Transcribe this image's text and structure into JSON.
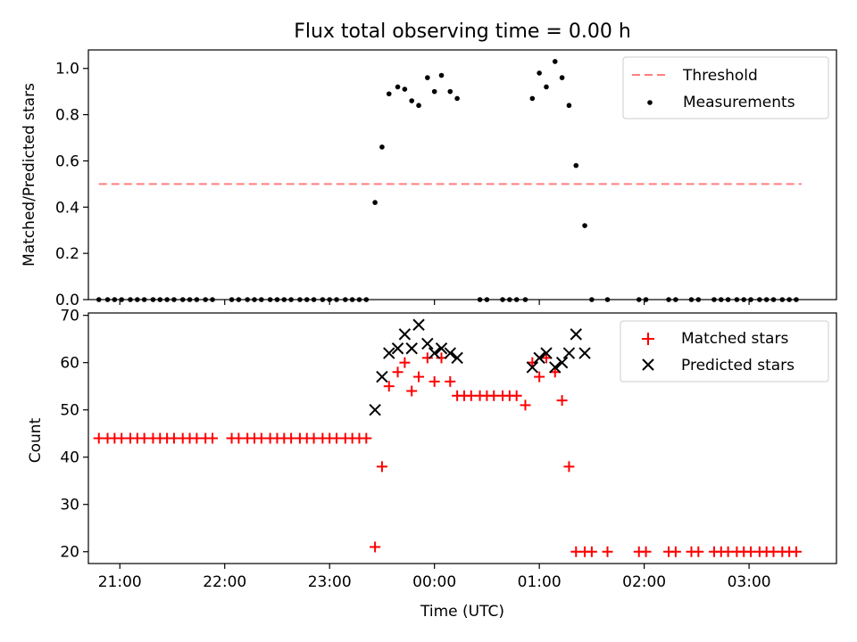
{
  "chart_data": [
    {
      "type": "scatter",
      "title": "Flux total observing time = 0.00 h",
      "xlabel": "",
      "ylabel": "Matched/Predicted stars",
      "xlim": [
        "20:42",
        "03:50"
      ],
      "ylim": [
        0,
        1.08
      ],
      "yticks": [
        "0.0",
        "0.2",
        "0.4",
        "0.6",
        "0.8",
        "1.0"
      ],
      "x_tick_positions": [
        "21:00",
        "22:00",
        "23:00",
        "00:00",
        "01:00",
        "02:00",
        "03:00"
      ],
      "legend": {
        "placement": "top-right",
        "entries": [
          "Threshold",
          "Measurements"
        ]
      },
      "threshold": {
        "name": "Threshold",
        "value": 0.5,
        "x_start": "20:48",
        "x_end": "03:30",
        "color": "#ff7f7f"
      },
      "series": [
        {
          "name": "Measurements",
          "color": "#000000",
          "points": [
            [
              "20:48",
              0
            ],
            [
              "20:53",
              0
            ],
            [
              "20:57",
              0
            ],
            [
              "21:01",
              0
            ],
            [
              "21:06",
              0
            ],
            [
              "21:10",
              0
            ],
            [
              "21:14",
              0
            ],
            [
              "21:19",
              0
            ],
            [
              "21:23",
              0
            ],
            [
              "21:27",
              0
            ],
            [
              "21:31",
              0
            ],
            [
              "21:36",
              0
            ],
            [
              "21:40",
              0
            ],
            [
              "21:44",
              0
            ],
            [
              "21:49",
              0
            ],
            [
              "21:53",
              0
            ],
            [
              "22:04",
              0
            ],
            [
              "22:08",
              0
            ],
            [
              "22:13",
              0
            ],
            [
              "22:17",
              0
            ],
            [
              "22:21",
              0
            ],
            [
              "22:26",
              0
            ],
            [
              "22:30",
              0
            ],
            [
              "22:34",
              0
            ],
            [
              "22:38",
              0
            ],
            [
              "22:43",
              0
            ],
            [
              "22:47",
              0
            ],
            [
              "22:51",
              0
            ],
            [
              "22:56",
              0
            ],
            [
              "23:00",
              0
            ],
            [
              "23:04",
              0
            ],
            [
              "23:09",
              0
            ],
            [
              "23:13",
              0
            ],
            [
              "23:17",
              0
            ],
            [
              "23:21",
              0
            ],
            [
              "23:26",
              0.42
            ],
            [
              "23:30",
              0.66
            ],
            [
              "23:34",
              0.89
            ],
            [
              "23:39",
              0.92
            ],
            [
              "23:43",
              0.91
            ],
            [
              "23:47",
              0.86
            ],
            [
              "23:51",
              0.84
            ],
            [
              "23:56",
              0.96
            ],
            [
              "00:00",
              0.9
            ],
            [
              "00:04",
              0.97
            ],
            [
              "00:09",
              0.9
            ],
            [
              "00:13",
              0.87
            ],
            [
              "00:26",
              0
            ],
            [
              "00:30",
              0
            ],
            [
              "00:39",
              0
            ],
            [
              "00:43",
              0
            ],
            [
              "00:47",
              0
            ],
            [
              "00:52",
              0
            ],
            [
              "00:56",
              0.87
            ],
            [
              "01:00",
              0.98
            ],
            [
              "01:04",
              0.92
            ],
            [
              "01:09",
              1.03
            ],
            [
              "01:13",
              0.96
            ],
            [
              "01:17",
              0.84
            ],
            [
              "01:21",
              0.58
            ],
            [
              "01:26",
              0.32
            ],
            [
              "01:30",
              0
            ],
            [
              "01:39",
              0
            ],
            [
              "01:57",
              0
            ],
            [
              "02:01",
              0
            ],
            [
              "02:14",
              0
            ],
            [
              "02:18",
              0
            ],
            [
              "02:27",
              0
            ],
            [
              "02:31",
              0
            ],
            [
              "02:40",
              0
            ],
            [
              "02:44",
              0
            ],
            [
              "02:48",
              0
            ],
            [
              "02:53",
              0
            ],
            [
              "02:57",
              0
            ],
            [
              "03:01",
              0
            ],
            [
              "03:06",
              0
            ],
            [
              "03:10",
              0
            ],
            [
              "03:14",
              0
            ],
            [
              "03:19",
              0
            ],
            [
              "03:23",
              0
            ],
            [
              "03:27",
              0
            ]
          ]
        }
      ]
    },
    {
      "type": "scatter",
      "xlabel": "Time (UTC)",
      "ylabel": "Count",
      "xlim": [
        "20:42",
        "03:50"
      ],
      "ylim": [
        17.5,
        70.5
      ],
      "yticks": [
        "20",
        "30",
        "40",
        "50",
        "60",
        "70"
      ],
      "xticks": [
        "21:00",
        "22:00",
        "23:00",
        "00:00",
        "01:00",
        "02:00",
        "03:00"
      ],
      "legend": {
        "placement": "top-right",
        "entries": [
          "Matched stars",
          "Predicted stars"
        ]
      },
      "series": [
        {
          "name": "Matched stars",
          "marker": "plus",
          "color": "#ff0000",
          "points": [
            [
              "20:48",
              44
            ],
            [
              "20:53",
              44
            ],
            [
              "20:57",
              44
            ],
            [
              "21:01",
              44
            ],
            [
              "21:06",
              44
            ],
            [
              "21:10",
              44
            ],
            [
              "21:14",
              44
            ],
            [
              "21:19",
              44
            ],
            [
              "21:23",
              44
            ],
            [
              "21:27",
              44
            ],
            [
              "21:31",
              44
            ],
            [
              "21:36",
              44
            ],
            [
              "21:40",
              44
            ],
            [
              "21:44",
              44
            ],
            [
              "21:49",
              44
            ],
            [
              "21:53",
              44
            ],
            [
              "22:04",
              44
            ],
            [
              "22:08",
              44
            ],
            [
              "22:13",
              44
            ],
            [
              "22:17",
              44
            ],
            [
              "22:21",
              44
            ],
            [
              "22:26",
              44
            ],
            [
              "22:30",
              44
            ],
            [
              "22:34",
              44
            ],
            [
              "22:38",
              44
            ],
            [
              "22:43",
              44
            ],
            [
              "22:47",
              44
            ],
            [
              "22:51",
              44
            ],
            [
              "22:56",
              44
            ],
            [
              "23:00",
              44
            ],
            [
              "23:04",
              44
            ],
            [
              "23:09",
              44
            ],
            [
              "23:13",
              44
            ],
            [
              "23:17",
              44
            ],
            [
              "23:21",
              44
            ],
            [
              "23:26",
              21
            ],
            [
              "23:30",
              38
            ],
            [
              "23:34",
              55
            ],
            [
              "23:39",
              58
            ],
            [
              "23:43",
              60
            ],
            [
              "23:47",
              54
            ],
            [
              "23:51",
              57
            ],
            [
              "23:56",
              61
            ],
            [
              "00:00",
              56
            ],
            [
              "00:04",
              61
            ],
            [
              "00:09",
              56
            ],
            [
              "00:13",
              53
            ],
            [
              "00:17",
              53
            ],
            [
              "00:21",
              53
            ],
            [
              "00:26",
              53
            ],
            [
              "00:30",
              53
            ],
            [
              "00:34",
              53
            ],
            [
              "00:39",
              53
            ],
            [
              "00:43",
              53
            ],
            [
              "00:47",
              53
            ],
            [
              "00:52",
              51
            ],
            [
              "00:56",
              60
            ],
            [
              "01:00",
              57
            ],
            [
              "01:04",
              61
            ],
            [
              "01:09",
              58
            ],
            [
              "01:13",
              52
            ],
            [
              "01:17",
              38
            ],
            [
              "01:21",
              20
            ],
            [
              "01:26",
              20
            ],
            [
              "01:30",
              20
            ],
            [
              "01:39",
              20
            ],
            [
              "01:57",
              20
            ],
            [
              "02:01",
              20
            ],
            [
              "02:14",
              20
            ],
            [
              "02:18",
              20
            ],
            [
              "02:27",
              20
            ],
            [
              "02:31",
              20
            ],
            [
              "02:40",
              20
            ],
            [
              "02:44",
              20
            ],
            [
              "02:48",
              20
            ],
            [
              "02:53",
              20
            ],
            [
              "02:57",
              20
            ],
            [
              "03:01",
              20
            ],
            [
              "03:06",
              20
            ],
            [
              "03:10",
              20
            ],
            [
              "03:14",
              20
            ],
            [
              "03:19",
              20
            ],
            [
              "03:23",
              20
            ],
            [
              "03:27",
              20
            ]
          ]
        },
        {
          "name": "Predicted stars",
          "marker": "x",
          "color": "#000000",
          "points": [
            [
              "23:26",
              50
            ],
            [
              "23:30",
              57
            ],
            [
              "23:34",
              62
            ],
            [
              "23:39",
              63
            ],
            [
              "23:43",
              66
            ],
            [
              "23:47",
              63
            ],
            [
              "23:51",
              68
            ],
            [
              "23:56",
              64
            ],
            [
              "00:00",
              62
            ],
            [
              "00:04",
              63
            ],
            [
              "00:09",
              62
            ],
            [
              "00:13",
              61
            ],
            [
              "00:56",
              59
            ],
            [
              "01:00",
              61
            ],
            [
              "01:04",
              62
            ],
            [
              "01:09",
              59
            ],
            [
              "01:13",
              60
            ],
            [
              "01:17",
              62
            ],
            [
              "01:21",
              66
            ],
            [
              "01:26",
              62
            ]
          ]
        }
      ]
    }
  ]
}
